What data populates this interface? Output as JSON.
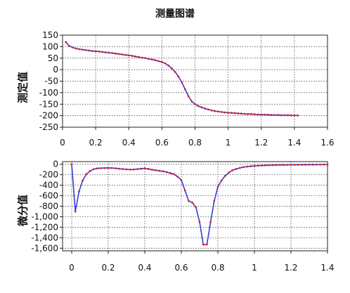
{
  "title": "测量图谱",
  "chart_data": [
    {
      "type": "line",
      "ylabel": "测定值",
      "xlabel": "",
      "xlim": [
        0,
        1.6
      ],
      "ylim": [
        -250,
        150
      ],
      "xticks": [
        "0",
        "0.2",
        "0.4",
        "0.6",
        "0.8",
        "1",
        "1.2",
        "1.4",
        "1.6"
      ],
      "yticks": [
        "150",
        "100",
        "50",
        "0",
        "-50",
        "-100",
        "-150",
        "-200",
        "-250"
      ],
      "grid": true,
      "series": [
        {
          "line_color": "#3a3ad8",
          "marker_color": "#d8202a",
          "x": [
            0.02,
            0.04,
            0.06,
            0.08,
            0.1,
            0.12,
            0.14,
            0.16,
            0.18,
            0.2,
            0.22,
            0.24,
            0.26,
            0.28,
            0.3,
            0.32,
            0.34,
            0.36,
            0.38,
            0.4,
            0.42,
            0.44,
            0.46,
            0.48,
            0.5,
            0.52,
            0.54,
            0.56,
            0.58,
            0.6,
            0.62,
            0.64,
            0.66,
            0.68,
            0.7,
            0.72,
            0.74,
            0.76,
            0.78,
            0.8,
            0.82,
            0.84,
            0.86,
            0.88,
            0.9,
            0.92,
            0.94,
            0.96,
            0.98,
            1.0,
            1.02,
            1.04,
            1.06,
            1.08,
            1.1,
            1.12,
            1.14,
            1.16,
            1.18,
            1.2,
            1.22,
            1.24,
            1.26,
            1.28,
            1.3,
            1.32,
            1.34,
            1.36,
            1.38,
            1.4,
            1.42
          ],
          "y": [
            120,
            103,
            97,
            92,
            89,
            87,
            85,
            83,
            81,
            80,
            79,
            77,
            75,
            74,
            72,
            70,
            68,
            66,
            64,
            62,
            60,
            57,
            55,
            52,
            50,
            47,
            44,
            41,
            37,
            33,
            27,
            18,
            5,
            -10,
            -30,
            -55,
            -85,
            -115,
            -138,
            -150,
            -158,
            -164,
            -169,
            -173,
            -177,
            -180,
            -182,
            -184,
            -186,
            -187,
            -188,
            -189,
            -190,
            -191,
            -192,
            -193,
            -193,
            -194,
            -195,
            -195,
            -196,
            -196,
            -197,
            -197,
            -197,
            -198,
            -198,
            -198,
            -199,
            -199,
            -199
          ]
        }
      ]
    },
    {
      "type": "line",
      "ylabel": "微分值",
      "xlabel": "",
      "xlim": [
        -0.05,
        1.4
      ],
      "ylim": [
        -1650,
        50
      ],
      "xticks": [
        "0",
        "0.2",
        "0.4",
        "0.6",
        "0.8",
        "1",
        "1.2",
        "1.4"
      ],
      "yticks": [
        "0",
        "-200",
        "-400",
        "-600",
        "-800",
        "-1,000",
        "-1,200",
        "-1,400",
        "-1,600"
      ],
      "grid": true,
      "series": [
        {
          "line_color": "#3a3ad8",
          "marker_color": "#d8202a",
          "x": [
            0.0,
            0.02,
            0.04,
            0.06,
            0.08,
            0.1,
            0.12,
            0.14,
            0.16,
            0.18,
            0.2,
            0.22,
            0.24,
            0.26,
            0.28,
            0.3,
            0.32,
            0.34,
            0.36,
            0.38,
            0.4,
            0.42,
            0.44,
            0.46,
            0.48,
            0.5,
            0.52,
            0.54,
            0.56,
            0.58,
            0.6,
            0.62,
            0.64,
            0.66,
            0.68,
            0.7,
            0.72,
            0.74,
            0.76,
            0.78,
            0.8,
            0.82,
            0.84,
            0.86,
            0.88,
            0.9,
            0.92,
            0.94,
            0.96,
            0.98,
            1.0,
            1.02,
            1.04,
            1.06,
            1.08,
            1.1,
            1.12,
            1.14,
            1.16,
            1.18,
            1.2,
            1.22,
            1.24,
            1.26,
            1.28,
            1.3,
            1.32,
            1.34,
            1.36,
            1.38,
            1.4
          ],
          "y": [
            0,
            -900,
            -520,
            -310,
            -190,
            -130,
            -95,
            -80,
            -75,
            -72,
            -70,
            -72,
            -78,
            -85,
            -92,
            -98,
            -102,
            -100,
            -92,
            -85,
            -80,
            -90,
            -105,
            -115,
            -125,
            -135,
            -150,
            -170,
            -190,
            -240,
            -300,
            -500,
            -700,
            -730,
            -820,
            -1100,
            -1530,
            -1530,
            -1100,
            -700,
            -430,
            -310,
            -220,
            -160,
            -115,
            -90,
            -70,
            -55,
            -45,
            -38,
            -32,
            -27,
            -24,
            -21,
            -19,
            -17,
            -15,
            -14,
            -13,
            -12,
            -11,
            -10,
            -10,
            -9,
            -9,
            -8,
            -8,
            -7,
            -7,
            -6,
            -6
          ]
        }
      ]
    }
  ]
}
